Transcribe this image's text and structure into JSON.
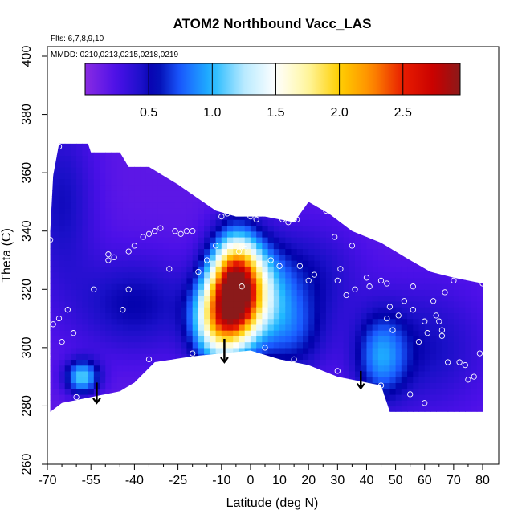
{
  "chart_data": {
    "type": "heatmap",
    "title": "ATOM2 Northbound Vacc_LAS",
    "annotations": [
      "Flts: 6,7,8,9,10",
      "MMDD: 0210,0213,0215,0218,0219"
    ],
    "xlabel": "Latitude (deg N)",
    "ylabel": "Theta (C)",
    "xlim": [
      -70,
      80
    ],
    "ylim": [
      260,
      400
    ],
    "xticks": [
      -70,
      -55,
      -40,
      -25,
      -10,
      0,
      10,
      20,
      30,
      40,
      50,
      60,
      70,
      80
    ],
    "xticks_minor": [
      -65,
      -60,
      -50,
      -45,
      -35,
      -30,
      -20,
      -15,
      -5,
      5,
      15,
      25,
      35,
      45,
      55,
      65,
      75
    ],
    "yticks": [
      260,
      280,
      300,
      320,
      340,
      360,
      380,
      400
    ],
    "colorbar": {
      "range": [
        0,
        2.95
      ],
      "ticks": [
        0.5,
        1.0,
        1.5,
        2.0,
        2.5
      ],
      "tick_labels": [
        "0.5",
        "1.0",
        "1.5",
        "2.0",
        "2.5"
      ]
    },
    "colormap": [
      {
        "v": 0.0,
        "c": "#8a2be2"
      },
      {
        "v": 0.25,
        "c": "#4b10e8"
      },
      {
        "v": 0.45,
        "c": "#1a10c8"
      },
      {
        "v": 0.55,
        "c": "#0000a8"
      },
      {
        "v": 0.75,
        "c": "#1a5aff"
      },
      {
        "v": 1.0,
        "c": "#1fb8ff"
      },
      {
        "v": 1.25,
        "c": "#b8eaff"
      },
      {
        "v": 1.5,
        "c": "#ffffff"
      },
      {
        "v": 1.75,
        "c": "#fff6a0"
      },
      {
        "v": 2.0,
        "c": "#ffcf00"
      },
      {
        "v": 2.25,
        "c": "#ff8c00"
      },
      {
        "v": 2.5,
        "c": "#e81c00"
      },
      {
        "v": 2.75,
        "c": "#c80000"
      },
      {
        "v": 2.95,
        "c": "#8b1a1a"
      }
    ],
    "data_upper_boundary": [
      [
        -69,
        340
      ],
      [
        -68,
        359
      ],
      [
        -66,
        370
      ],
      [
        -56,
        370
      ],
      [
        -55,
        367
      ],
      [
        -45,
        367
      ],
      [
        -42,
        362
      ],
      [
        -35,
        362
      ],
      [
        -25,
        356
      ],
      [
        -12,
        347
      ],
      [
        -5,
        345
      ],
      [
        5,
        345
      ],
      [
        15,
        343
      ],
      [
        20,
        350
      ],
      [
        27,
        346
      ],
      [
        35,
        340
      ],
      [
        45,
        336
      ],
      [
        55,
        330
      ],
      [
        62,
        326
      ],
      [
        70,
        324
      ],
      [
        80,
        322
      ]
    ],
    "data_lower_boundary": [
      [
        80,
        278
      ],
      [
        48,
        278
      ],
      [
        45,
        287
      ],
      [
        40,
        288
      ],
      [
        30,
        290
      ],
      [
        20,
        294
      ],
      [
        10,
        296
      ],
      [
        0,
        299
      ],
      [
        -10,
        298
      ],
      [
        -20,
        297
      ],
      [
        -33,
        295
      ],
      [
        -40,
        288
      ],
      [
        -45,
        285
      ],
      [
        -55,
        283
      ],
      [
        -65,
        281
      ],
      [
        -69,
        278
      ]
    ],
    "background_value": 0.18,
    "blobs": [
      {
        "x": -5,
        "y": 320,
        "sx": 6,
        "sy": 12,
        "amp": 2.75
      },
      {
        "x": -12,
        "y": 309,
        "sx": 6,
        "sy": 10,
        "amp": 1.2
      },
      {
        "x": 5,
        "y": 318,
        "sx": 7,
        "sy": 12,
        "amp": 0.6
      },
      {
        "x": 15,
        "y": 305,
        "sx": 8,
        "sy": 10,
        "amp": 0.4
      },
      {
        "x": -58,
        "y": 290,
        "sx": 4,
        "sy": 4,
        "amp": 0.9
      },
      {
        "x": 45,
        "y": 297,
        "sx": 6,
        "sy": 10,
        "amp": 0.6
      },
      {
        "x": -40,
        "y": 315,
        "sx": 15,
        "sy": 12,
        "amp": 0.35
      },
      {
        "x": 60,
        "y": 300,
        "sx": 15,
        "sy": 15,
        "amp": 0.3
      },
      {
        "x": 20,
        "y": 325,
        "sx": 12,
        "sy": 12,
        "amp": 0.3
      },
      {
        "x": -65,
        "y": 350,
        "sx": 8,
        "sy": 20,
        "amp": 0.3
      }
    ],
    "sample_points": [
      [
        -66,
        369
      ],
      [
        -69,
        363
      ],
      [
        -69,
        359
      ],
      [
        -70,
        343
      ],
      [
        -69,
        337
      ],
      [
        -70,
        297
      ],
      [
        -68,
        308
      ],
      [
        -65,
        302
      ],
      [
        -66,
        310
      ],
      [
        -63,
        313
      ],
      [
        -61,
        305
      ],
      [
        -54,
        320
      ],
      [
        -49,
        332
      ],
      [
        -49,
        330
      ],
      [
        -47,
        331
      ],
      [
        -44,
        313
      ],
      [
        -42,
        320
      ],
      [
        -42,
        333
      ],
      [
        -40,
        335
      ],
      [
        -37,
        338
      ],
      [
        -35,
        339
      ],
      [
        -33,
        340
      ],
      [
        -31,
        341
      ],
      [
        -28,
        327
      ],
      [
        -26,
        340
      ],
      [
        -24,
        339
      ],
      [
        -22,
        340
      ],
      [
        -20,
        340
      ],
      [
        -18,
        326
      ],
      [
        -15,
        330
      ],
      [
        -12,
        335
      ],
      [
        -10,
        345
      ],
      [
        -8,
        346
      ],
      [
        -6,
        347
      ],
      [
        -4,
        333
      ],
      [
        -3,
        321
      ],
      [
        -2,
        334
      ],
      [
        0,
        345
      ],
      [
        2,
        344
      ],
      [
        5,
        324
      ],
      [
        7,
        330
      ],
      [
        10,
        328
      ],
      [
        11,
        344
      ],
      [
        13,
        343
      ],
      [
        15,
        344
      ],
      [
        16,
        344
      ],
      [
        17,
        328
      ],
      [
        20,
        323
      ],
      [
        22,
        325
      ],
      [
        26,
        347
      ],
      [
        29,
        338
      ],
      [
        30,
        323
      ],
      [
        31,
        327
      ],
      [
        33,
        318
      ],
      [
        35,
        335
      ],
      [
        36,
        320
      ],
      [
        40,
        324
      ],
      [
        41,
        321
      ],
      [
        45,
        323
      ],
      [
        47,
        322
      ],
      [
        47,
        310
      ],
      [
        48,
        314
      ],
      [
        49,
        306
      ],
      [
        51,
        311
      ],
      [
        53,
        316
      ],
      [
        56,
        321
      ],
      [
        56,
        313
      ],
      [
        58,
        302
      ],
      [
        60,
        309
      ],
      [
        61,
        305
      ],
      [
        63,
        316
      ],
      [
        64,
        311
      ],
      [
        65,
        309
      ],
      [
        66,
        304
      ],
      [
        66,
        306
      ],
      [
        67,
        319
      ],
      [
        68,
        295
      ],
      [
        70,
        323
      ],
      [
        72,
        295
      ],
      [
        74,
        294
      ],
      [
        75,
        289
      ],
      [
        77,
        290
      ],
      [
        79,
        298
      ],
      [
        80,
        322
      ],
      [
        -64,
        280
      ],
      [
        -60,
        283
      ],
      [
        -35,
        296
      ],
      [
        -20,
        298
      ],
      [
        5,
        300
      ],
      [
        15,
        296
      ],
      [
        30,
        292
      ],
      [
        45,
        287
      ],
      [
        55,
        284
      ],
      [
        60,
        281
      ]
    ],
    "arrows": [
      {
        "x": -53,
        "y_top": 288,
        "y_tip": 281
      },
      {
        "x": -9,
        "y_top": 303,
        "y_tip": 295
      },
      {
        "x": 38,
        "y_top": 292,
        "y_tip": 286
      }
    ]
  }
}
